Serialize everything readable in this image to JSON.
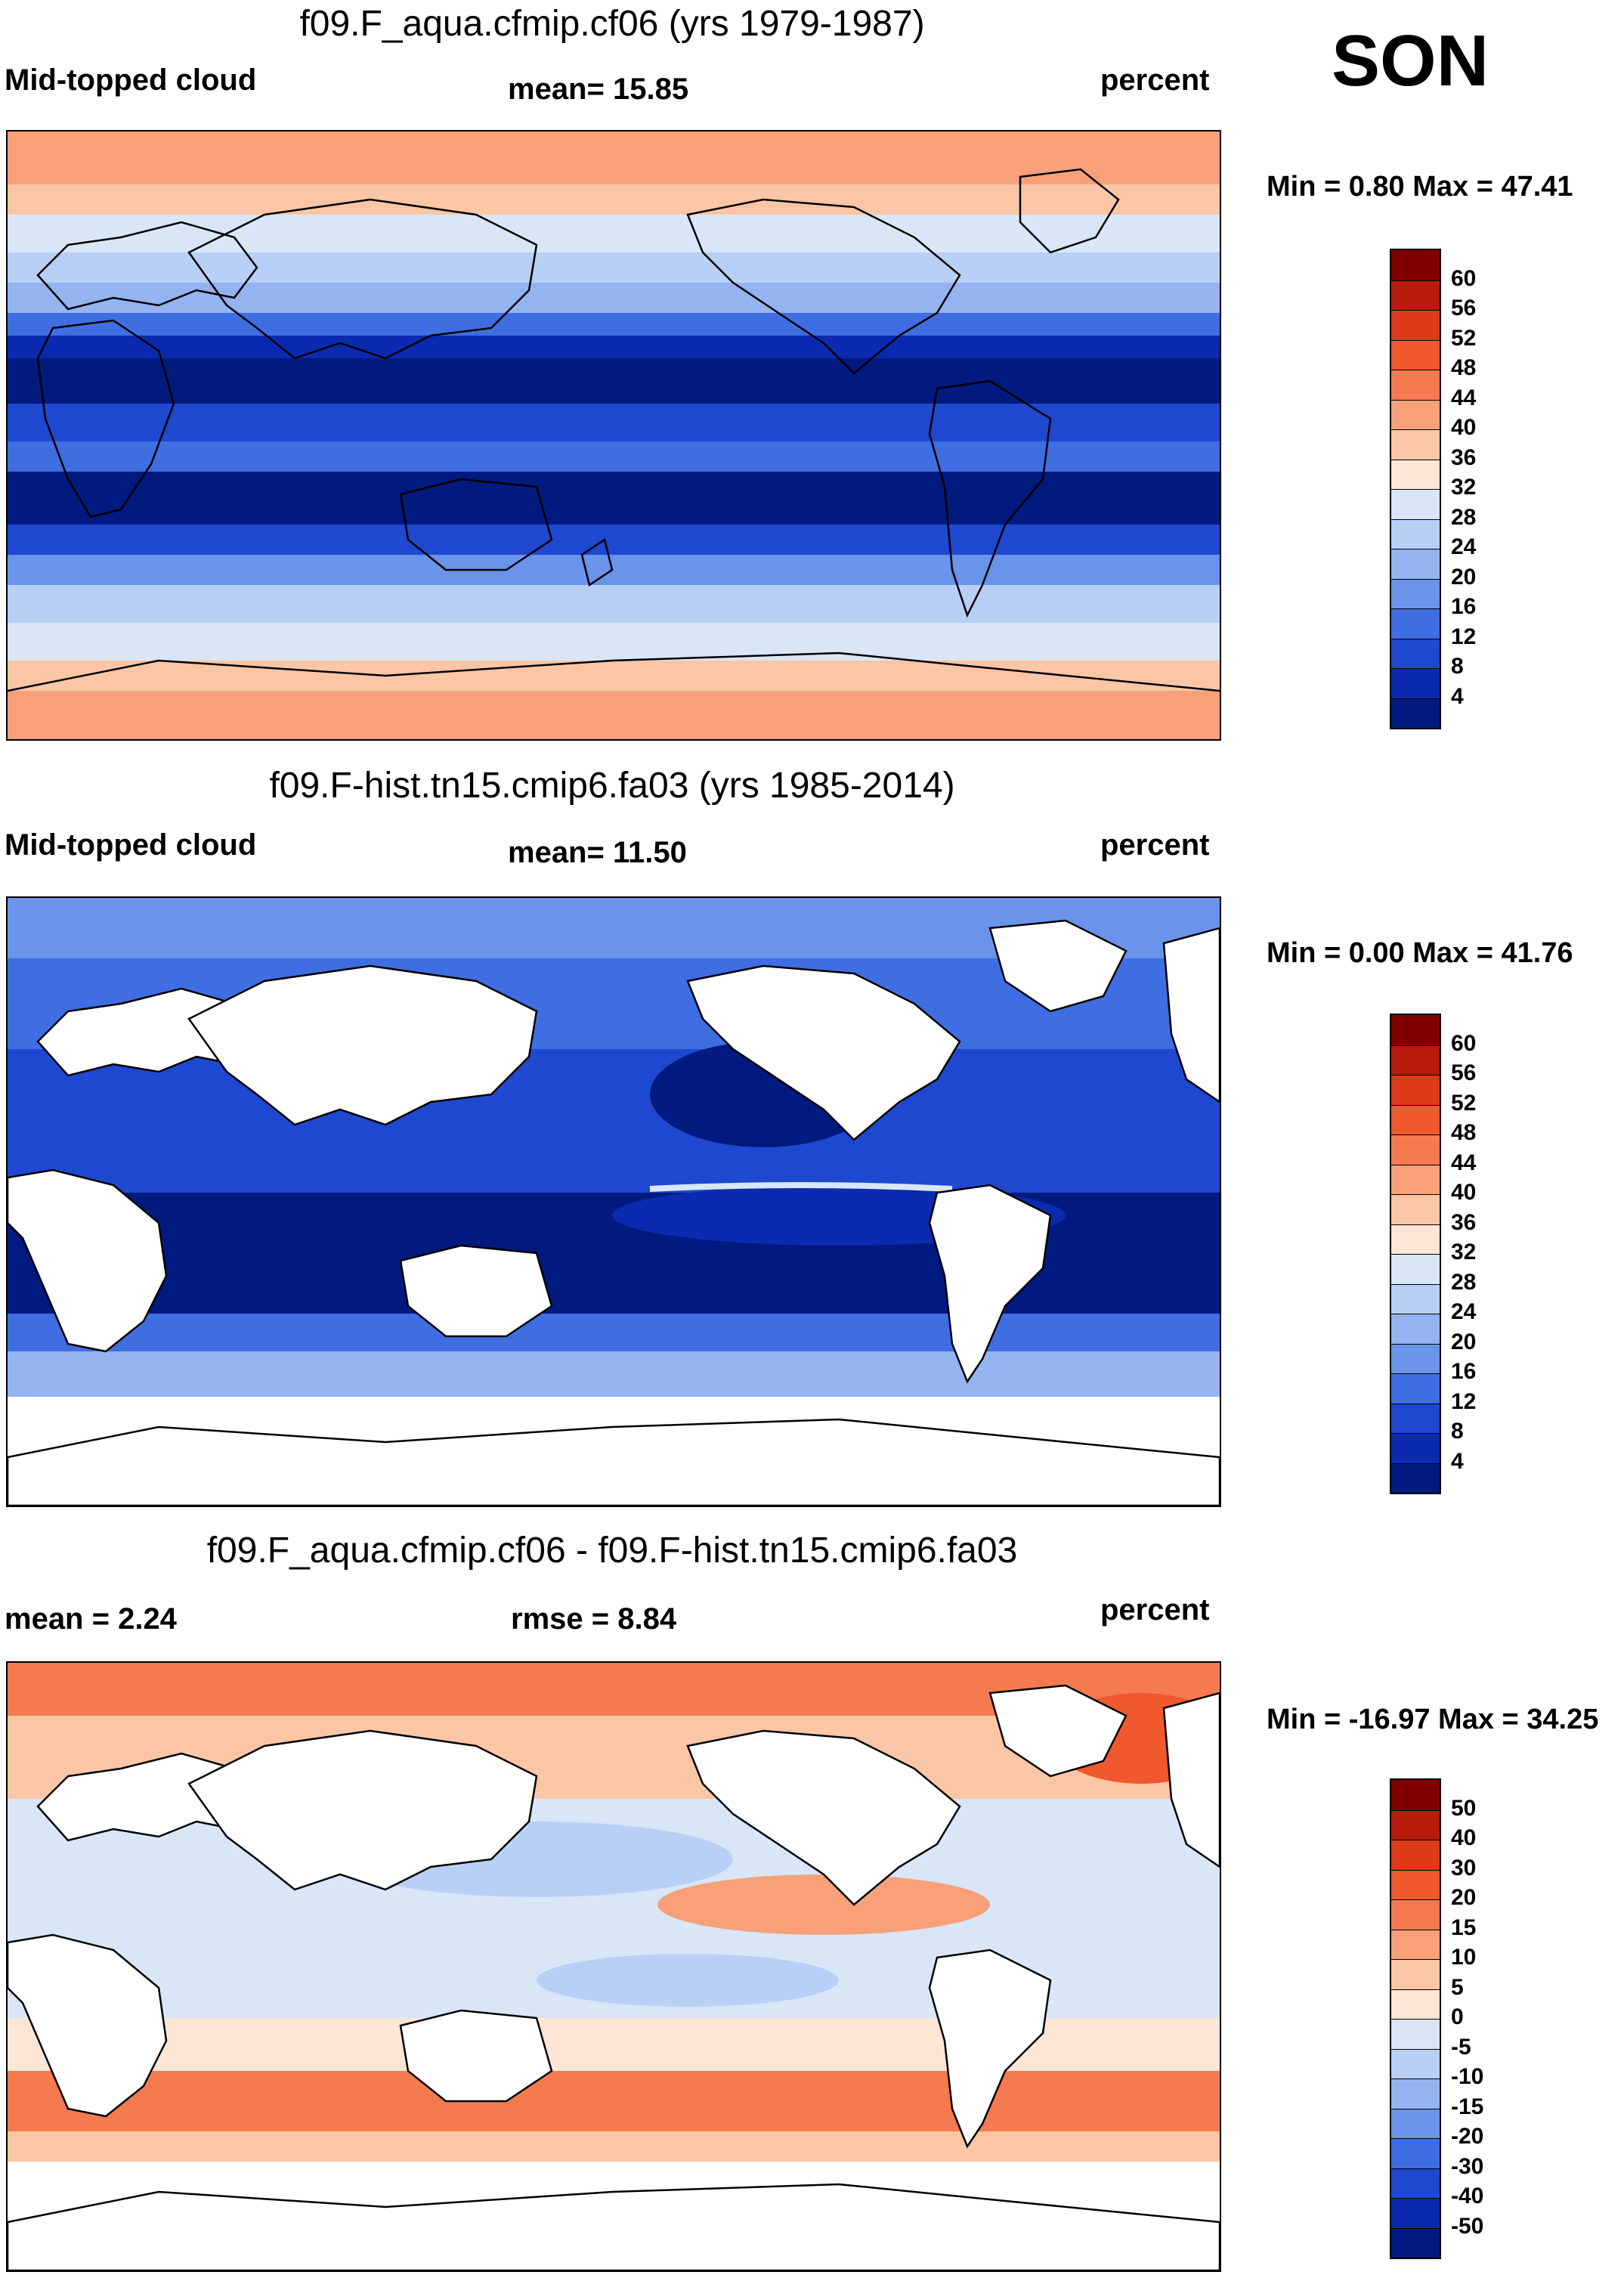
{
  "season": "SON",
  "panels": [
    {
      "title": "f09.F_aqua.cfmip.cf06 (yrs 1979-1987)",
      "left_label": "Mid-topped cloud",
      "center_label": "mean=  15.85",
      "right_label": "percent",
      "minmax": "Min =   0.80 Max =  47.41",
      "legend": {
        "labels": [
          "60",
          "56",
          "52",
          "48",
          "44",
          "40",
          "36",
          "32",
          "28",
          "24",
          "20",
          "16",
          "12",
          "8",
          "4"
        ],
        "colors": [
          "#800000",
          "#b71c0c",
          "#de3a18",
          "#f0582e",
          "#f57a4f",
          "#f8a07a",
          "#fbc6a6",
          "#fde6d5",
          "#d8e6f8",
          "#b8d0f5",
          "#93b4f0",
          "#6a93ea",
          "#3f6ee2",
          "#1e48d0",
          "#0a2ab0",
          "#001a80"
        ]
      },
      "kind": "sim"
    },
    {
      "title": "f09.F-hist.tn15.cmip6.fa03 (yrs 1985-2014)",
      "left_label": "Mid-topped cloud",
      "center_label": "mean=  11.50",
      "right_label": "percent",
      "minmax": "Min =   0.00 Max =  41.76",
      "legend": {
        "labels": [
          "60",
          "56",
          "52",
          "48",
          "44",
          "40",
          "36",
          "32",
          "28",
          "24",
          "20",
          "16",
          "12",
          "8",
          "4"
        ],
        "colors": [
          "#800000",
          "#b71c0c",
          "#de3a18",
          "#f0582e",
          "#f57a4f",
          "#f8a07a",
          "#fbc6a6",
          "#fde6d5",
          "#d8e6f8",
          "#b8d0f5",
          "#93b4f0",
          "#6a93ea",
          "#3f6ee2",
          "#1e48d0",
          "#0a2ab0",
          "#001a80"
        ]
      },
      "kind": "obs"
    },
    {
      "title": "f09.F_aqua.cfmip.cf06 - f09.F-hist.tn15.cmip6.fa03",
      "left_label": "mean =   2.24",
      "center_label": "rmse =   8.84",
      "right_label": "percent",
      "minmax": "Min = -16.97 Max =  34.25",
      "legend": {
        "labels": [
          "50",
          "40",
          "30",
          "20",
          "15",
          "10",
          "5",
          "0",
          "-5",
          "-10",
          "-15",
          "-20",
          "-30",
          "-40",
          "-50"
        ],
        "colors": [
          "#800000",
          "#b71c0c",
          "#de3a18",
          "#f0582e",
          "#f57a4f",
          "#f8a07a",
          "#fbc6a6",
          "#fde6d5",
          "#d8e6f8",
          "#b8d0f5",
          "#93b4f0",
          "#6a93ea",
          "#3f6ee2",
          "#1e48d0",
          "#0a2ab0",
          "#001a80"
        ]
      },
      "kind": "diff"
    }
  ]
}
